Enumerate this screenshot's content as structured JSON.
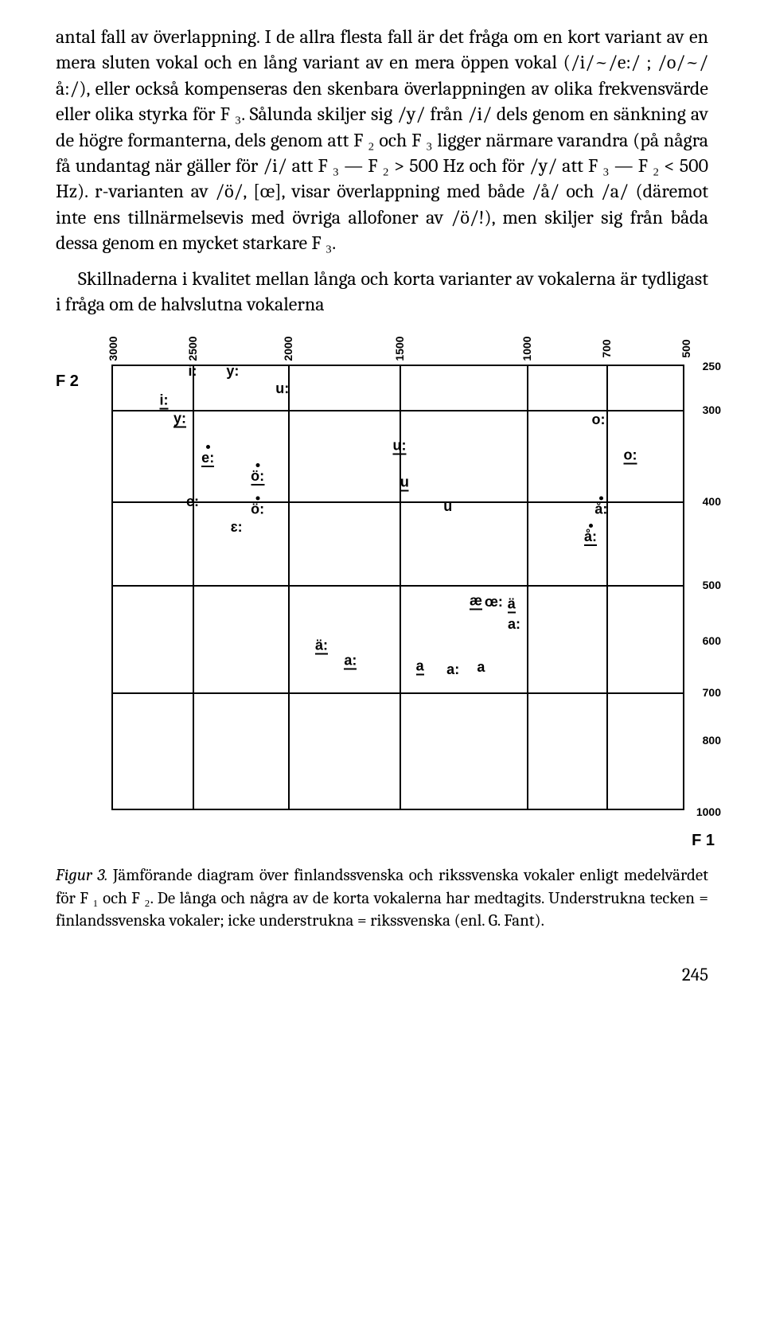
{
  "text": {
    "para1": "antal fall av överlappning. I de allra flesta fall är det fråga om en kort variant av en mera sluten vokal och en lång variant av en mera öppen vokal (/i/~/e:/ ; /o/~/å:/), eller också kompenseras den skenbara överlappningen av olika frekvensvärde eller olika styrka för F ₃. Sålunda skiljer sig /y/ från /i/ dels genom en sänkning av de högre formanterna, dels genom att F ₂ och F ₃ ligger närmare varandra (på några få undantag när gäller för /i/ att F ₃ — F ₂ > 500 Hz och för /y/ att F ₃ — F ₂ < 500 Hz). r-varianten av /ö/, [œ], visar överlappning med både /å/ och /a/ (däremot inte ens tillnärmelsevis med övriga allofoner av /ö/!), men skiljer sig från båda dessa genom en mycket starkare F ₃.",
    "para2": "Skillnaderna i kvalitet mellan långa och korta varianter av vokalerna är tydligast i fråga om de halvslutna vokalerna",
    "caption_lead": "Figur 3.",
    "caption_body": " Jämförande diagram över finlandssvenska och rikssvenska vokaler enligt medelvärdet för F ₁ och F ₂. De långa och några av de korta vokalerna har medtagits. Understrukna tecken = finlandssvenska vokaler; icke understrukna = rikssvenska (enl. G. Fant).",
    "page_number": "245"
  },
  "chart": {
    "type": "scatter",
    "background_color": "#ffffff",
    "border_color": "#000000",
    "x_axis": {
      "label": "F 2",
      "min": 500,
      "max": 3000,
      "reversed": true,
      "ticks": [
        3000,
        2500,
        2000,
        1500,
        1000,
        700,
        500
      ],
      "tick_fontsize": 14
    },
    "y_axis": {
      "label": "F 1",
      "min": 250,
      "max": 1000,
      "reversed": true,
      "ticks": [
        250,
        300,
        400,
        500,
        600,
        700,
        800,
        1000
      ],
      "tick_fontsize": 14
    },
    "gridlines_x": [
      2500,
      2000,
      1500,
      1000,
      700
    ],
    "gridlines_y": [
      300,
      400,
      500,
      700
    ],
    "points": [
      {
        "label": "i:",
        "f2": 2500,
        "f1": 255,
        "underline": false,
        "dot": false
      },
      {
        "label": "i:",
        "f2": 2680,
        "f1": 290,
        "underline": true,
        "dot": false
      },
      {
        "label": "y:",
        "f2": 2290,
        "f1": 255,
        "underline": false,
        "dot": false
      },
      {
        "label": "y:",
        "f2": 2580,
        "f1": 310,
        "underline": true,
        "dot": false
      },
      {
        "label": "u:",
        "f2": 2030,
        "f1": 275,
        "underline": false,
        "dot": false
      },
      {
        "label": "e:",
        "f2": 2420,
        "f1": 350,
        "underline": true,
        "dot": true
      },
      {
        "label": "ö:",
        "f2": 2160,
        "f1": 370,
        "underline": true,
        "dot": true
      },
      {
        "label": "u:",
        "f2": 1500,
        "f1": 340,
        "underline": true,
        "dot": false
      },
      {
        "label": "u",
        "f2": 1480,
        "f1": 380,
        "underline": true,
        "dot": false
      },
      {
        "label": "o:",
        "f2": 730,
        "f1": 310,
        "underline": false,
        "dot": false
      },
      {
        "label": "o:",
        "f2": 640,
        "f1": 350,
        "underline": true,
        "dot": false
      },
      {
        "label": "e:",
        "f2": 2500,
        "f1": 400,
        "underline": false,
        "dot": false
      },
      {
        "label": "ö:",
        "f2": 2160,
        "f1": 405,
        "underline": false,
        "dot": true
      },
      {
        "label": "ɛ:",
        "f2": 2270,
        "f1": 430,
        "underline": false,
        "dot": false
      },
      {
        "label": "u",
        "f2": 1310,
        "f1": 405,
        "underline": false,
        "dot": false
      },
      {
        "label": "å:",
        "f2": 720,
        "f1": 405,
        "underline": false,
        "dot": true
      },
      {
        "label": "å:",
        "f2": 760,
        "f1": 440,
        "underline": true,
        "dot": true
      },
      {
        "label": "æ",
        "f2": 1200,
        "f1": 530,
        "underline": true,
        "dot": false
      },
      {
        "label": "œ:",
        "f2": 1130,
        "f1": 530,
        "underline": false,
        "dot": false
      },
      {
        "label": "ä",
        "f2": 1060,
        "f1": 535,
        "underline": true,
        "dot": false
      },
      {
        "label": "ä:",
        "f2": 1850,
        "f1": 610,
        "underline": true,
        "dot": false
      },
      {
        "label": "a:",
        "f2": 1050,
        "f1": 570,
        "underline": false,
        "dot": false
      },
      {
        "label": "a:",
        "f2": 1720,
        "f1": 640,
        "underline": true,
        "dot": false
      },
      {
        "label": "a",
        "f2": 1420,
        "f1": 650,
        "underline": true,
        "dot": false
      },
      {
        "label": "a:",
        "f2": 1290,
        "f1": 655,
        "underline": false,
        "dot": false
      },
      {
        "label": "a",
        "f2": 1180,
        "f1": 650,
        "underline": false,
        "dot": false
      }
    ]
  }
}
